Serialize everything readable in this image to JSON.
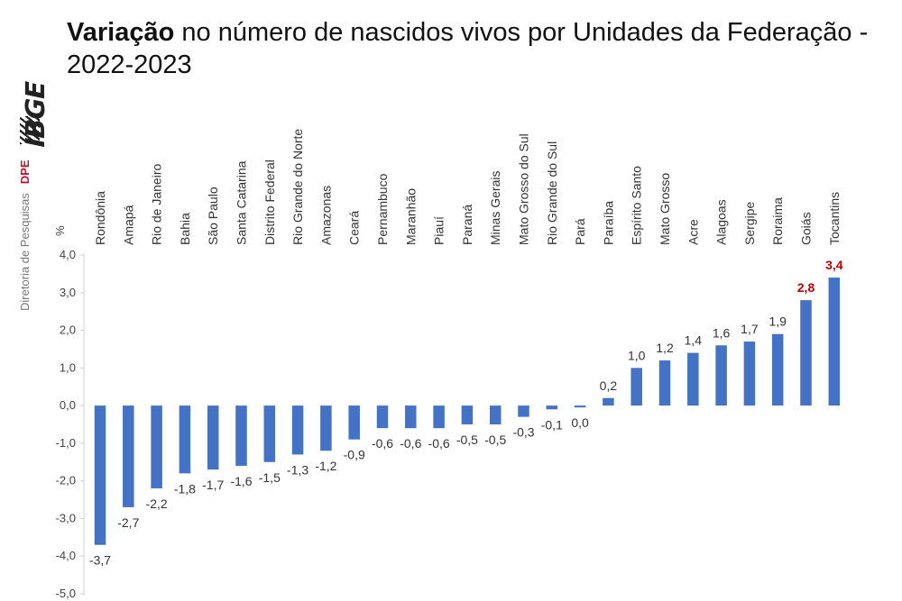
{
  "title": {
    "bold": "Variação",
    "rest": " no número de nascidos vivos por Unidades da Federação - 2022-2023"
  },
  "sidebar": {
    "logo": "IBGE",
    "department": "Diretoria de Pesquisas",
    "department_abbr": "DPE"
  },
  "colors": {
    "bar": "#4472c4",
    "highlight_label": "#c00000",
    "label": "#333333",
    "axis": "#d0d0d0"
  },
  "chart_data": {
    "type": "bar",
    "ylabel": "%",
    "ylim": [
      -5,
      4
    ],
    "yticks": [
      "4,0",
      "3,0",
      "2,0",
      "1,0",
      "0,0",
      "-1,0",
      "-2,0",
      "-3,0",
      "-4,0",
      "-5,0"
    ],
    "categories": [
      "Rondônia",
      "Amapá",
      "Rio de Janeiro",
      "Bahia",
      "São Paulo",
      "Santa Catarina",
      "Distrito Federal",
      "Rio Grande do Norte",
      "Amazonas",
      "Ceará",
      "Pernambuco",
      "Maranhão",
      "Piauí",
      "Paraná",
      "Minas Gerais",
      "Mato Grosso do Sul",
      "Rio Grande do Sul",
      "Pará",
      "Paraíba",
      "Espírito Santo",
      "Mato Grosso",
      "Acre",
      "Alagoas",
      "Sergipe",
      "Roraima",
      "Goiás",
      "Tocantins"
    ],
    "values": [
      -3.7,
      -2.7,
      -2.2,
      -1.8,
      -1.7,
      -1.6,
      -1.5,
      -1.3,
      -1.2,
      -0.9,
      -0.6,
      -0.6,
      -0.6,
      -0.5,
      -0.5,
      -0.3,
      -0.1,
      -0.05,
      0.2,
      1.0,
      1.2,
      1.4,
      1.6,
      1.7,
      1.9,
      2.8,
      3.4
    ],
    "labels": [
      "-3,7",
      "-2,7",
      "-2,2",
      "-1,8",
      "-1,7",
      "-1,6",
      "-1,5",
      "-1,3",
      "-1,2",
      "-0,9",
      "-0,6",
      "-0,6",
      "-0,6",
      "-0,5",
      "-0,5",
      "-0,3",
      "-0,1",
      "0,0",
      "0,2",
      "1,0",
      "1,2",
      "1,4",
      "1,6",
      "1,7",
      "1,9",
      "2,8",
      "3,4"
    ],
    "highlight": [
      "Goiás",
      "Tocantins"
    ],
    "grid": false,
    "legend": "none"
  }
}
